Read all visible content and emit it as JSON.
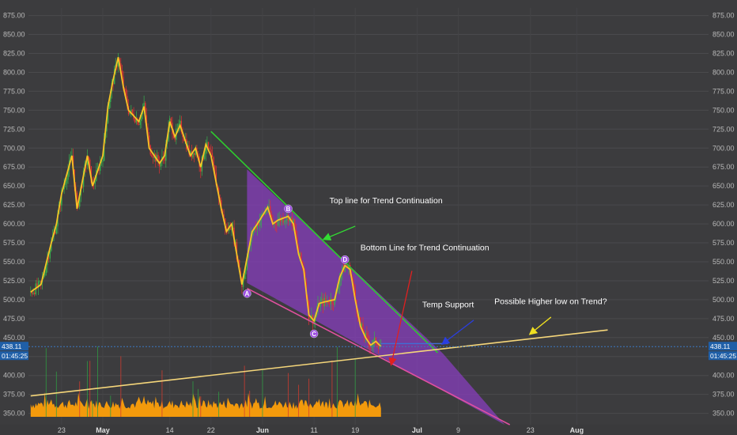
{
  "chart_data": {
    "type": "candlestick",
    "price_axis": {
      "ylim": [
        335,
        885
      ],
      "ticks": [
        "875.00",
        "850.00",
        "825.00",
        "800.00",
        "775.00",
        "750.00",
        "725.00",
        "700.00",
        "675.00",
        "650.00",
        "625.00",
        "600.00",
        "575.00",
        "550.00",
        "525.00",
        "500.00",
        "475.00",
        "450.00",
        "425.00",
        "400.00",
        "375.00",
        "350.00"
      ],
      "tick_values": [
        875,
        850,
        825,
        800,
        775,
        750,
        725,
        700,
        675,
        650,
        625,
        600,
        575,
        550,
        525,
        500,
        475,
        450,
        425,
        400,
        375,
        350
      ]
    },
    "time_axis": {
      "labels": [
        "23",
        "May",
        "14",
        "22",
        "Jun",
        "11",
        "19",
        "Jul",
        "9",
        "23",
        "Aug"
      ],
      "label_days": [
        -8,
        0,
        13,
        21,
        31,
        41,
        49,
        61,
        69,
        83,
        92
      ],
      "bold_labels": [
        "May",
        "Jun",
        "Jul",
        "Aug"
      ]
    },
    "current_price": {
      "value": "438.11",
      "timer": "01:45:25"
    },
    "close_series": [
      {
        "day": -14,
        "price": 510
      },
      {
        "day": -12,
        "price": 520
      },
      {
        "day": -10,
        "price": 575
      },
      {
        "day": -9,
        "price": 600
      },
      {
        "day": -8,
        "price": 640
      },
      {
        "day": -6,
        "price": 690
      },
      {
        "day": -5,
        "price": 620
      },
      {
        "day": -3,
        "price": 690
      },
      {
        "day": -2,
        "price": 650
      },
      {
        "day": 0,
        "price": 690
      },
      {
        "day": 1,
        "price": 755
      },
      {
        "day": 2,
        "price": 790
      },
      {
        "day": 3,
        "price": 820
      },
      {
        "day": 4,
        "price": 780
      },
      {
        "day": 5,
        "price": 750
      },
      {
        "day": 7,
        "price": 735
      },
      {
        "day": 8,
        "price": 755
      },
      {
        "day": 9,
        "price": 700
      },
      {
        "day": 11,
        "price": 680
      },
      {
        "day": 12,
        "price": 690
      },
      {
        "day": 13,
        "price": 735
      },
      {
        "day": 14,
        "price": 715
      },
      {
        "day": 15,
        "price": 730
      },
      {
        "day": 17,
        "price": 690
      },
      {
        "day": 18,
        "price": 700
      },
      {
        "day": 19,
        "price": 675
      },
      {
        "day": 20,
        "price": 705
      },
      {
        "day": 21,
        "price": 690
      },
      {
        "day": 23,
        "price": 620
      },
      {
        "day": 24,
        "price": 590
      },
      {
        "day": 25,
        "price": 600
      },
      {
        "day": 26,
        "price": 560
      },
      {
        "day": 27,
        "price": 520
      },
      {
        "day": 28,
        "price": 555
      },
      {
        "day": 29,
        "price": 590
      },
      {
        "day": 30,
        "price": 600
      },
      {
        "day": 32,
        "price": 622
      },
      {
        "day": 33,
        "price": 600
      },
      {
        "day": 34,
        "price": 605
      },
      {
        "day": 36,
        "price": 610
      },
      {
        "day": 37,
        "price": 600
      },
      {
        "day": 38,
        "price": 560
      },
      {
        "day": 39,
        "price": 540
      },
      {
        "day": 40,
        "price": 480
      },
      {
        "day": 41,
        "price": 472
      },
      {
        "day": 42,
        "price": 495
      },
      {
        "day": 43,
        "price": 497
      },
      {
        "day": 45,
        "price": 500
      },
      {
        "day": 46,
        "price": 530
      },
      {
        "day": 47,
        "price": 545
      },
      {
        "day": 48,
        "price": 540
      },
      {
        "day": 49,
        "price": 500
      },
      {
        "day": 50,
        "price": 465
      },
      {
        "day": 51,
        "price": 450
      },
      {
        "day": 52,
        "price": 440
      },
      {
        "day": 53,
        "price": 445
      },
      {
        "day": 54,
        "price": 438
      }
    ],
    "lines": [
      {
        "name": "Top line for Trend Continuation",
        "color": "#2ecc2e",
        "from": {
          "day": 21,
          "price": 722
        },
        "to": {
          "day": 65,
          "price": 430
        }
      },
      {
        "name": "Bottom Line for Trend Continuation",
        "color": "#e0509f",
        "from": {
          "day": 28,
          "price": 515
        },
        "to": {
          "day": 79,
          "price": 335
        }
      },
      {
        "name": "Possible Higher low on Trend?",
        "color": "#f5d67a",
        "from": {
          "day": -14,
          "price": 373
        },
        "to": {
          "day": 98,
          "price": 460
        }
      },
      {
        "name": "Temp Support",
        "color": "#3f6fd6",
        "from": {
          "day": 54,
          "price": 442
        },
        "to": {
          "day": 67,
          "price": 442
        }
      }
    ],
    "channel": [
      {
        "day": 28,
        "price": 672
      },
      {
        "day": 66,
        "price": 429
      },
      {
        "day": 78,
        "price": 335
      },
      {
        "day": 28,
        "price": 522
      }
    ],
    "pattern_points": [
      {
        "label": "A",
        "day": 28,
        "price": 508
      },
      {
        "label": "B",
        "day": 36,
        "price": 620
      },
      {
        "label": "C",
        "day": 41,
        "price": 455
      },
      {
        "label": "D",
        "day": 47,
        "price": 553
      }
    ],
    "annotations": [
      {
        "text": "Top line for Trend Continuation",
        "day": 44,
        "price": 627,
        "arrow_to": {
          "day": 43,
          "price": 580
        },
        "arrow_from": {
          "day": 49,
          "price": 597
        },
        "arrow_color": "#33dd33"
      },
      {
        "text": "Bottom Line for Trend Continuation",
        "day": 50,
        "price": 565,
        "arrow_to": {
          "day": 56,
          "price": 415
        },
        "arrow_from": {
          "day": 60,
          "price": 538
        },
        "arrow_color": "#e02020"
      },
      {
        "text": "Temp Support",
        "day": 62,
        "price": 490,
        "arrow_to": {
          "day": 66,
          "price": 442
        },
        "arrow_from": {
          "day": 72,
          "price": 473
        },
        "arrow_color": "#2a3ee0"
      },
      {
        "text": "Possible Higher low on Trend?",
        "day": 76,
        "price": 494,
        "arrow_to": {
          "day": 83,
          "price": 455
        },
        "arrow_from": {
          "day": 87,
          "price": 477
        },
        "arrow_color": "#f0e020"
      }
    ],
    "volume": {
      "start_day": -14,
      "end_day": 54,
      "color": "#f39a0c"
    }
  }
}
